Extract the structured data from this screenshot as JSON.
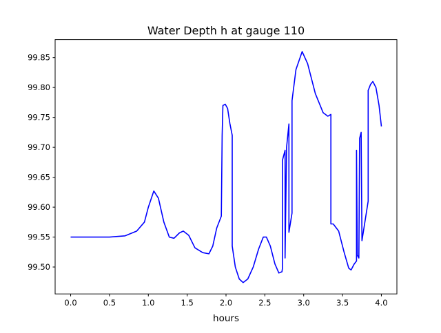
{
  "chart_data": {
    "type": "line",
    "title": "Water Depth h at gauge 110",
    "xlabel": "hours",
    "ylabel": "",
    "xlim": [
      -0.2,
      4.2
    ],
    "ylim": [
      99.455,
      99.88
    ],
    "xticks": [
      0.0,
      0.5,
      1.0,
      1.5,
      2.0,
      2.5,
      3.0,
      3.5,
      4.0
    ],
    "xtick_labels": [
      "0.0",
      "0.5",
      "1.0",
      "1.5",
      "2.0",
      "2.5",
      "3.0",
      "3.5",
      "4.0"
    ],
    "yticks": [
      99.5,
      99.55,
      99.6,
      99.65,
      99.7,
      99.75,
      99.8,
      99.85
    ],
    "ytick_labels": [
      "99.50",
      "99.55",
      "99.60",
      "99.65",
      "99.70",
      "99.75",
      "99.80",
      "99.85"
    ],
    "grid": false,
    "series": [
      {
        "name": "h",
        "color": "#0000ff",
        "x": [
          0,
          0.5,
          0.7,
          0.85,
          0.95,
          1.0,
          1.07,
          1.13,
          1.2,
          1.27,
          1.33,
          1.4,
          1.45,
          1.52,
          1.6,
          1.7,
          1.78,
          1.83,
          1.88,
          1.94,
          1.95,
          1.96,
          1.99,
          2.02,
          2.05,
          2.08,
          2.08,
          2.12,
          2.17,
          2.22,
          2.28,
          2.35,
          2.42,
          2.48,
          2.52,
          2.57,
          2.63,
          2.68,
          2.72,
          2.726,
          2.726,
          2.76,
          2.76,
          2.78,
          2.81,
          2.81,
          2.85,
          2.85,
          2.9,
          2.98,
          3.05,
          3.15,
          3.25,
          3.31,
          3.35,
          3.35,
          3.38,
          3.45,
          3.52,
          3.58,
          3.61,
          3.65,
          3.68,
          3.68,
          3.69,
          3.71,
          3.72,
          3.74,
          3.75,
          3.83,
          3.83,
          3.86,
          3.89,
          3.93,
          3.97,
          4.0
        ],
        "y": [
          99.55,
          99.55,
          99.552,
          99.56,
          99.575,
          99.6,
          99.627,
          99.615,
          99.575,
          99.55,
          99.548,
          99.557,
          99.56,
          99.553,
          99.532,
          99.524,
          99.522,
          99.535,
          99.565,
          99.585,
          99.72,
          99.77,
          99.772,
          99.765,
          99.74,
          99.72,
          99.535,
          99.5,
          99.48,
          99.474,
          99.48,
          99.5,
          99.53,
          99.55,
          99.55,
          99.535,
          99.505,
          99.49,
          99.492,
          99.497,
          99.678,
          99.695,
          99.515,
          99.7,
          99.739,
          99.558,
          99.59,
          99.778,
          99.83,
          99.86,
          99.84,
          99.79,
          99.758,
          99.752,
          99.755,
          99.572,
          99.572,
          99.56,
          99.525,
          99.498,
          99.495,
          99.505,
          99.51,
          99.695,
          99.52,
          99.515,
          99.715,
          99.725,
          99.544,
          99.61,
          99.795,
          99.805,
          99.81,
          99.8,
          99.77,
          99.735
        ]
      }
    ]
  }
}
